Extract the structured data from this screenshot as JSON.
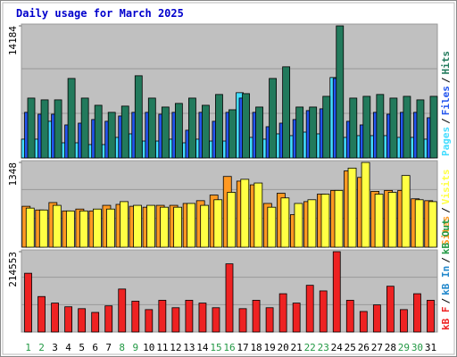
{
  "chart_data": [
    {
      "type": "bar",
      "title": "Daily usage for March 2025",
      "separator": "/",
      "ylim": [
        0,
        14184
      ],
      "yticks": [
        14184
      ],
      "series": [
        {
          "name": "Pages",
          "color": "#44ddff",
          "values": [
            2020,
            2020,
            3940,
            1630,
            1630,
            1440,
            1440,
            2210,
            2590,
            1820,
            1820,
            2020,
            1630,
            2020,
            1820,
            1820,
            7010,
            2210,
            2020,
            2590,
            2400,
            2780,
            2590,
            8640,
            2210,
            2400,
            2400,
            2400,
            2210,
            2210,
            2020
          ]
        },
        {
          "name": "Files",
          "color": "#2255ee",
          "values": [
            4900,
            4700,
            4700,
            3550,
            3740,
            4130,
            3940,
            4510,
            4900,
            4900,
            4700,
            4900,
            2980,
            4900,
            3940,
            4900,
            6430,
            4900,
            3360,
            3740,
            4130,
            5090,
            5280,
            8540,
            3940,
            3550,
            4900,
            4700,
            4900,
            4900,
            4320
          ]
        },
        {
          "name": "Hits",
          "color": "#227a5c",
          "values": [
            6430,
            6240,
            6240,
            8540,
            6430,
            5660,
            4900,
            5570,
            8830,
            6430,
            5470,
            5860,
            6430,
            5660,
            6820,
            5180,
            6910,
            5470,
            8540,
            9790,
            5470,
            5470,
            6620,
            14184,
            6430,
            6620,
            6820,
            6430,
            6620,
            6240,
            6620
          ]
        }
      ]
    },
    {
      "type": "bar",
      "separator": "/",
      "ylim": [
        0,
        1348
      ],
      "yticks": [
        1348
      ],
      "series": [
        {
          "name": "Sites",
          "color": "#ff9922",
          "values": [
            651,
            592,
            710,
            577,
            607,
            577,
            666,
            681,
            651,
            636,
            666,
            666,
            696,
            740,
            829,
            1125,
            1051,
            992,
            696,
            858,
            518,
            725,
            844,
            903,
            1214,
            1110,
            888,
            903,
            903,
            770,
            740
          ]
        },
        {
          "name": "Visits",
          "color": "#ffff44",
          "values": [
            622,
            592,
            666,
            577,
            577,
            607,
            607,
            725,
            666,
            666,
            636,
            636,
            696,
            666,
            755,
            873,
            1080,
            1021,
            636,
            784,
            696,
            755,
            844,
            903,
            1258,
            1348,
            844,
            873,
            1140,
            755,
            725
          ]
        }
      ]
    },
    {
      "type": "bar",
      "separator": "/",
      "ylim": [
        0,
        214553
      ],
      "yticks": [
        214553
      ],
      "categories": [
        "1",
        "2",
        "3",
        "4",
        "5",
        "6",
        "7",
        "8",
        "9",
        "10",
        "11",
        "12",
        "13",
        "14",
        "15",
        "16",
        "17",
        "18",
        "19",
        "20",
        "21",
        "22",
        "23",
        "24",
        "25",
        "26",
        "27",
        "28",
        "29",
        "30",
        "31"
      ],
      "category_colors": [
        "#229944",
        "#229944",
        "#000000",
        "#000000",
        "#000000",
        "#000000",
        "#000000",
        "#229944",
        "#229944",
        "#000000",
        "#000000",
        "#000000",
        "#000000",
        "#000000",
        "#229944",
        "#229944",
        "#000000",
        "#000000",
        "#000000",
        "#000000",
        "#000000",
        "#229944",
        "#229944",
        "#000000",
        "#000000",
        "#000000",
        "#000000",
        "#000000",
        "#229944",
        "#229944",
        "#000000"
      ],
      "series": [
        {
          "name": "kB F",
          "color": "#ee2222",
          "values": [
            157000,
            94800,
            77300,
            67400,
            62400,
            52400,
            69900,
            114800,
            82300,
            59900,
            84800,
            64900,
            84800,
            77300,
            64900,
            182100,
            62400,
            84800,
            64900,
            102300,
            77300,
            124800,
            109800,
            214553,
            84800,
            54900,
            72400,
            122300,
            59900,
            102300,
            84800
          ]
        },
        {
          "name": "kB In",
          "color": "#2288cc",
          "values": [
            null,
            null,
            null,
            null,
            null,
            null,
            null,
            null,
            null,
            null,
            null,
            null,
            null,
            null,
            null,
            null,
            null,
            null,
            null,
            null,
            null,
            null,
            null,
            null,
            null,
            null,
            null,
            null,
            null,
            null,
            null
          ]
        },
        {
          "name": "kB Out",
          "color": "#229944",
          "values": [
            null,
            null,
            null,
            null,
            null,
            null,
            null,
            null,
            null,
            null,
            null,
            null,
            null,
            null,
            null,
            null,
            null,
            null,
            null,
            null,
            null,
            null,
            null,
            null,
            null,
            null,
            null,
            null,
            null,
            null,
            null
          ]
        }
      ]
    }
  ]
}
